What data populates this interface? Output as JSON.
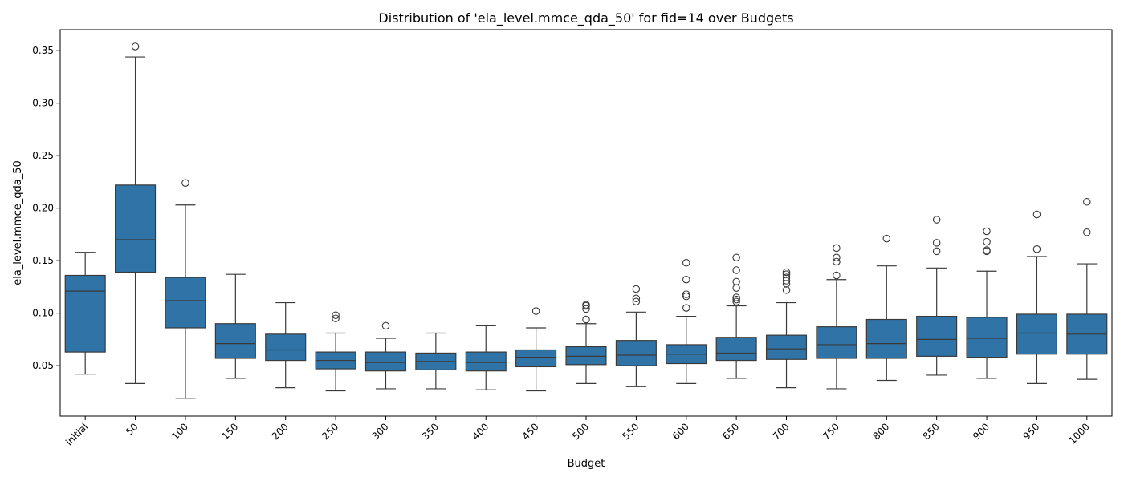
{
  "chart_data": {
    "type": "box",
    "title": "Distribution of 'ela_level.mmce_qda_50' for fid=14 over Budgets",
    "xlabel": "Budget",
    "ylabel": "ela_level.mmce_qda_50",
    "ylim": [
      0.002,
      0.37
    ],
    "yticks": [
      0.05,
      0.1,
      0.15,
      0.2,
      0.25,
      0.3,
      0.35
    ],
    "ytick_labels": [
      "0.05",
      "0.10",
      "0.15",
      "0.20",
      "0.25",
      "0.30",
      "0.35"
    ],
    "box_color": "#2f73a7",
    "edge_color": "#3a3a3a",
    "categories": [
      "initial",
      "50",
      "100",
      "150",
      "200",
      "250",
      "300",
      "350",
      "400",
      "450",
      "500",
      "550",
      "600",
      "650",
      "700",
      "750",
      "800",
      "850",
      "900",
      "950",
      "1000"
    ],
    "boxes": [
      {
        "category": "initial",
        "whislo": 0.042,
        "q1": 0.063,
        "med": 0.121,
        "q3": 0.136,
        "whishi": 0.158,
        "fliers": []
      },
      {
        "category": "50",
        "whislo": 0.033,
        "q1": 0.139,
        "med": 0.17,
        "q3": 0.222,
        "whishi": 0.344,
        "fliers": [
          0.354
        ]
      },
      {
        "category": "100",
        "whislo": 0.019,
        "q1": 0.086,
        "med": 0.112,
        "q3": 0.134,
        "whishi": 0.203,
        "fliers": [
          0.224
        ]
      },
      {
        "category": "150",
        "whislo": 0.038,
        "q1": 0.057,
        "med": 0.071,
        "q3": 0.09,
        "whishi": 0.137,
        "fliers": []
      },
      {
        "category": "200",
        "whislo": 0.029,
        "q1": 0.055,
        "med": 0.065,
        "q3": 0.08,
        "whishi": 0.11,
        "fliers": []
      },
      {
        "category": "250",
        "whislo": 0.026,
        "q1": 0.047,
        "med": 0.055,
        "q3": 0.063,
        "whishi": 0.081,
        "fliers": [
          0.095,
          0.098
        ]
      },
      {
        "category": "300",
        "whislo": 0.028,
        "q1": 0.045,
        "med": 0.053,
        "q3": 0.063,
        "whishi": 0.076,
        "fliers": [
          0.088
        ]
      },
      {
        "category": "350",
        "whislo": 0.028,
        "q1": 0.046,
        "med": 0.054,
        "q3": 0.062,
        "whishi": 0.081,
        "fliers": []
      },
      {
        "category": "400",
        "whislo": 0.027,
        "q1": 0.045,
        "med": 0.053,
        "q3": 0.063,
        "whishi": 0.088,
        "fliers": []
      },
      {
        "category": "450",
        "whislo": 0.026,
        "q1": 0.049,
        "med": 0.058,
        "q3": 0.065,
        "whishi": 0.086,
        "fliers": [
          0.102
        ]
      },
      {
        "category": "500",
        "whislo": 0.033,
        "q1": 0.051,
        "med": 0.059,
        "q3": 0.068,
        "whishi": 0.09,
        "fliers": [
          0.094,
          0.104,
          0.107,
          0.108
        ]
      },
      {
        "category": "550",
        "whislo": 0.03,
        "q1": 0.05,
        "med": 0.06,
        "q3": 0.074,
        "whishi": 0.101,
        "fliers": [
          0.111,
          0.114,
          0.123
        ]
      },
      {
        "category": "600",
        "whislo": 0.033,
        "q1": 0.052,
        "med": 0.061,
        "q3": 0.07,
        "whishi": 0.097,
        "fliers": [
          0.105,
          0.116,
          0.118,
          0.132,
          0.148
        ]
      },
      {
        "category": "650",
        "whislo": 0.038,
        "q1": 0.055,
        "med": 0.062,
        "q3": 0.077,
        "whishi": 0.107,
        "fliers": [
          0.111,
          0.113,
          0.115,
          0.124,
          0.13,
          0.141,
          0.153
        ]
      },
      {
        "category": "700",
        "whislo": 0.029,
        "q1": 0.056,
        "med": 0.066,
        "q3": 0.079,
        "whishi": 0.11,
        "fliers": [
          0.122,
          0.128,
          0.131,
          0.134,
          0.137,
          0.139
        ]
      },
      {
        "category": "750",
        "whislo": 0.028,
        "q1": 0.057,
        "med": 0.07,
        "q3": 0.087,
        "whishi": 0.132,
        "fliers": [
          0.136,
          0.149,
          0.153,
          0.162
        ]
      },
      {
        "category": "800",
        "whislo": 0.036,
        "q1": 0.057,
        "med": 0.071,
        "q3": 0.094,
        "whishi": 0.145,
        "fliers": [
          0.171
        ]
      },
      {
        "category": "850",
        "whislo": 0.041,
        "q1": 0.059,
        "med": 0.075,
        "q3": 0.097,
        "whishi": 0.143,
        "fliers": [
          0.159,
          0.167,
          0.189
        ]
      },
      {
        "category": "900",
        "whislo": 0.038,
        "q1": 0.058,
        "med": 0.076,
        "q3": 0.096,
        "whishi": 0.14,
        "fliers": [
          0.159,
          0.16,
          0.168,
          0.178
        ]
      },
      {
        "category": "950",
        "whislo": 0.033,
        "q1": 0.061,
        "med": 0.081,
        "q3": 0.099,
        "whishi": 0.154,
        "fliers": [
          0.161,
          0.194
        ]
      },
      {
        "category": "1000",
        "whislo": 0.037,
        "q1": 0.061,
        "med": 0.08,
        "q3": 0.099,
        "whishi": 0.147,
        "fliers": [
          0.177,
          0.206
        ]
      }
    ]
  }
}
